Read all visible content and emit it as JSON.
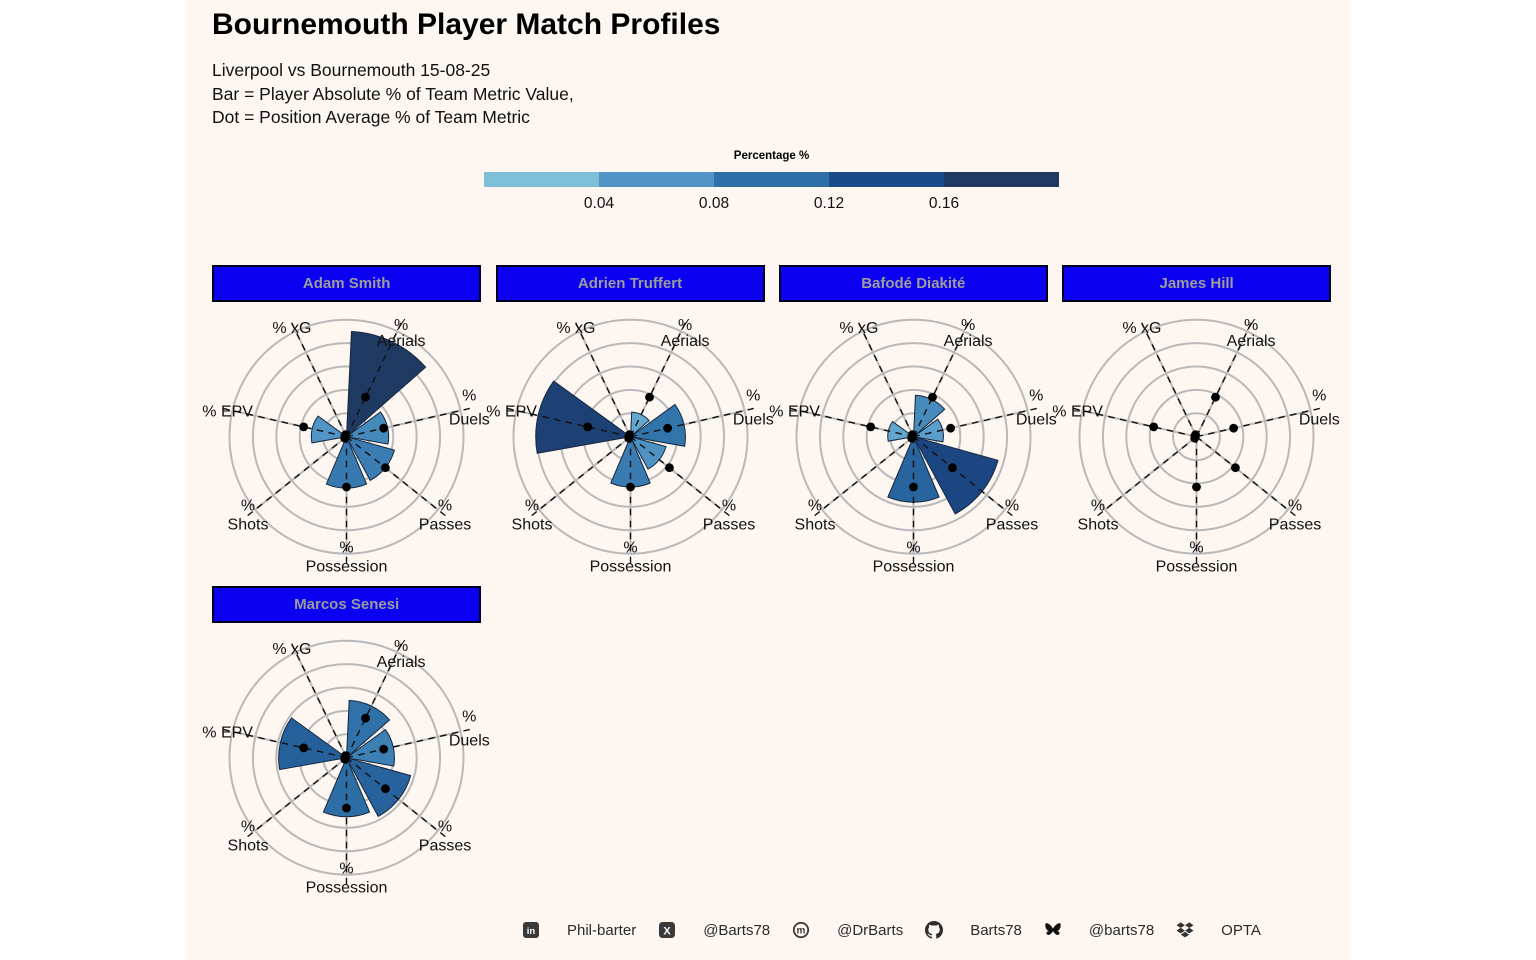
{
  "header": {
    "title": "Bournemouth Player Match Profiles",
    "subtitle_lines": [
      "Liverpool vs Bournemouth 15-08-25",
      "Bar = Player Absolute % of Team Metric Value,",
      "Dot = Position Average % of Team Metric"
    ]
  },
  "legend": {
    "title": "Percentage %",
    "ticks": [
      "0.04",
      "0.08",
      "0.12",
      "0.16"
    ],
    "tick_values": [
      0.04,
      0.08,
      0.12,
      0.16
    ],
    "band_colors": [
      "#7dbfd7",
      "#5195c6",
      "#2d6fa6",
      "#1b4a8b",
      "#1f3a62"
    ],
    "scale_anchors": [
      [
        0.02,
        "#7dbfd7"
      ],
      [
        0.06,
        "#5195c6"
      ],
      [
        0.1,
        "#2d6fa6"
      ],
      [
        0.14,
        "#1b4a8b"
      ],
      [
        0.18,
        "#1f3a62"
      ]
    ],
    "domain": [
      0.0,
      0.2
    ]
  },
  "chart_data": {
    "type": "polar_bar",
    "note": "Bar = player absolute % of team metric value; Dot = position average % of team metric",
    "radial_domain": [
      0.0,
      0.2
    ],
    "ring_step": 0.04,
    "axes": [
      {
        "id": "aerials",
        "label": [
          "%",
          "Aerials"
        ],
        "angle_deg": 25.7
      },
      {
        "id": "duels",
        "label": [
          "%",
          "Duels"
        ],
        "angle_deg": 77.1
      },
      {
        "id": "passes",
        "label": [
          "%",
          "Passes"
        ],
        "angle_deg": 128.6
      },
      {
        "id": "possession",
        "label": [
          "%",
          "Possession"
        ],
        "angle_deg": 180.0
      },
      {
        "id": "shots",
        "label": [
          "%",
          "Shots"
        ],
        "angle_deg": 231.4
      },
      {
        "id": "epv",
        "label": [
          "% EPV"
        ],
        "angle_deg": 282.9
      },
      {
        "id": "xg",
        "label": [
          "% xG"
        ],
        "angle_deg": 334.3
      }
    ],
    "position_average_dots": {
      "aerials": 0.075,
      "duels": 0.065,
      "passes": 0.085,
      "possession": 0.086,
      "shots": 0.004,
      "epv": 0.075,
      "xg": 0.004
    },
    "players": [
      {
        "name": "Adam Smith",
        "bars": {
          "aerials": 0.18,
          "duels": 0.072,
          "passes": 0.085,
          "possession": 0.088,
          "shots": 0,
          "epv": 0.06,
          "xg": 0
        }
      },
      {
        "name": "Adrien Truffert",
        "bars": {
          "aerials": 0.042,
          "duels": 0.094,
          "passes": 0.063,
          "possession": 0.086,
          "shots": 0,
          "epv": 0.162,
          "xg": 0
        }
      },
      {
        "name": "Bafodé Diakité",
        "bars": {
          "aerials": 0.071,
          "duels": 0.051,
          "passes": 0.15,
          "possession": 0.112,
          "shots": 0,
          "epv": 0.044,
          "xg": 0
        }
      },
      {
        "name": "James Hill",
        "bars": {
          "aerials": 0,
          "duels": 0,
          "passes": 0,
          "possession": 0,
          "shots": 0,
          "epv": 0,
          "xg": 0
        }
      },
      {
        "name": "Marcos Senesi",
        "bars": {
          "aerials": 0.098,
          "duels": 0.082,
          "passes": 0.114,
          "possession": 0.101,
          "shots": 0,
          "epv": 0.116,
          "xg": 0
        }
      }
    ]
  },
  "footer": {
    "items": [
      {
        "icon": "linkedin-icon",
        "label": "Phil-barter"
      },
      {
        "icon": "x-icon",
        "label": "@Barts78"
      },
      {
        "icon": "mastodon-icon",
        "label": "@DrBarts"
      },
      {
        "icon": "github-icon",
        "label": "Barts78"
      },
      {
        "icon": "bluesky-icon",
        "label": "@barts78"
      },
      {
        "icon": "dropbox-icon",
        "label": "OPTA"
      }
    ]
  }
}
